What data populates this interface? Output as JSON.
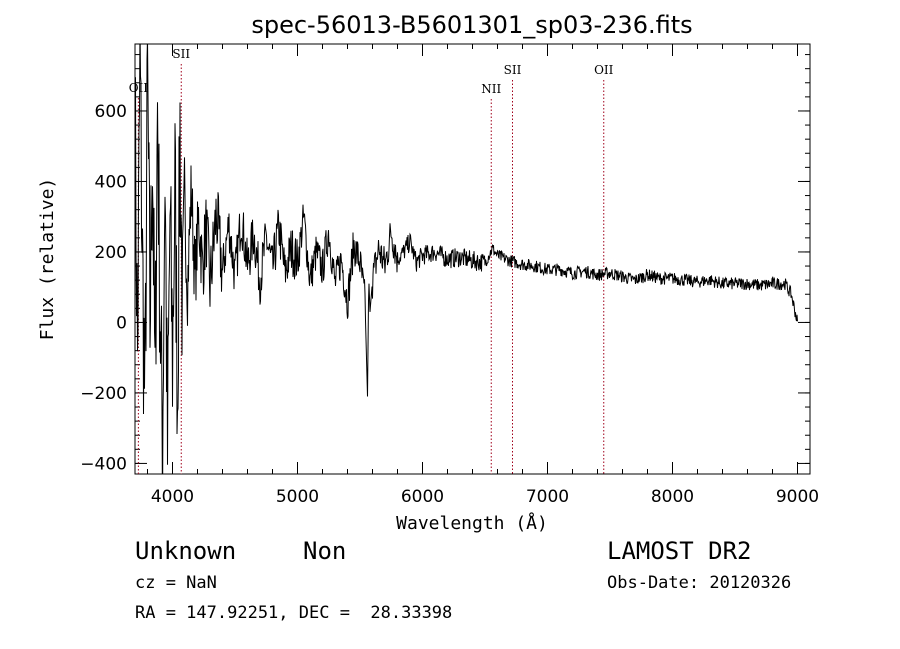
{
  "chart_data": {
    "type": "line",
    "title": "spec-56013-B5601301_sp03-236.fits",
    "xlabel": "Wavelength (Å)",
    "ylabel": "Flux (relative)",
    "xlim": [
      3700,
      9100
    ],
    "ylim": [
      -430,
      790
    ],
    "x_ticks": [
      4000,
      5000,
      6000,
      7000,
      8000,
      9000
    ],
    "y_ticks": [
      -400,
      -200,
      0,
      200,
      400,
      600
    ],
    "grid": false,
    "line_color": "#000000",
    "marker_color": "#a0001a",
    "series": [
      {
        "x": [
          3700,
          3720,
          3740,
          3760,
          3780,
          3800,
          3820,
          3840,
          3860,
          3880,
          3900,
          3920,
          3940,
          3960,
          3980,
          4000,
          4020,
          4040,
          4060,
          4080,
          4100,
          4120,
          4150,
          4180,
          4210,
          4240,
          4270,
          4300,
          4350,
          4400,
          4450,
          4500,
          4550,
          4600,
          4650,
          4700,
          4750,
          4800,
          4850,
          4900,
          4950,
          5000,
          5050,
          5100,
          5150,
          5200,
          5250,
          5300,
          5350,
          5400,
          5450,
          5500,
          5540,
          5560,
          5570,
          5580,
          5600,
          5650,
          5700,
          5750,
          5800,
          5850,
          5900,
          5950,
          6000,
          6100,
          6200,
          6300,
          6400,
          6500,
          6560,
          6600,
          6700,
          6800,
          6900,
          7000,
          7100,
          7200,
          7300,
          7400,
          7500,
          7600,
          7700,
          7800,
          7900,
          8000,
          8100,
          8200,
          8300,
          8400,
          8500,
          8600,
          8700,
          8800,
          8900,
          8950,
          9000
        ],
        "y": [
          600,
          -100,
          740,
          150,
          -250,
          700,
          0,
          500,
          -200,
          620,
          50,
          -350,
          450,
          -380,
          300,
          -100,
          400,
          -200,
          550,
          0,
          300,
          100,
          380,
          120,
          300,
          150,
          270,
          100,
          310,
          140,
          280,
          130,
          300,
          160,
          250,
          120,
          240,
          150,
          270,
          140,
          210,
          170,
          300,
          120,
          200,
          150,
          260,
          110,
          180,
          60,
          220,
          170,
          60,
          -210,
          130,
          30,
          120,
          210,
          160,
          260,
          180,
          200,
          230,
          170,
          190,
          200,
          180,
          185,
          175,
          170,
          210,
          190,
          175,
          165,
          160,
          150,
          150,
          140,
          145,
          135,
          140,
          130,
          120,
          135,
          125,
          125,
          120,
          115,
          120,
          110,
          110,
          110,
          105,
          110,
          110,
          80,
          0
        ]
      }
    ],
    "lines": [
      {
        "label": "OII",
        "x": 3727
      },
      {
        "label": "SII",
        "x": 4070
      },
      {
        "label": "NII",
        "x": 6550
      },
      {
        "label": "SII",
        "x": 6720
      },
      {
        "label": "OII",
        "x": 7450
      }
    ]
  },
  "info": {
    "class": "Unknown",
    "subclass": "Non",
    "survey": "LAMOST DR2",
    "cz": "cz = NaN",
    "obs_date": "Obs-Date: 20120326",
    "coords": "RA = 147.92251, DEC =  28.33398"
  }
}
